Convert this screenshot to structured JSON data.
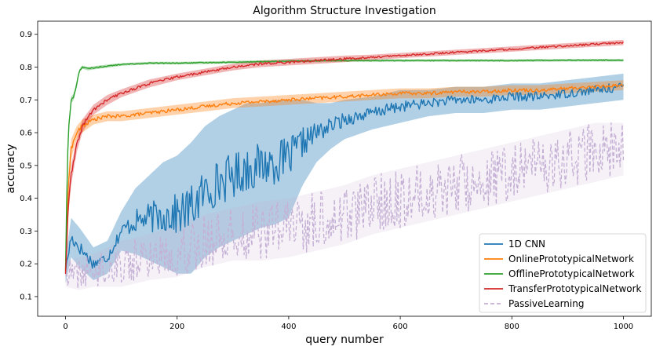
{
  "chart_data": {
    "type": "line",
    "title": "Algorithm Structure Investigation",
    "xlabel": "query number",
    "ylabel": "accuracy",
    "xlim": [
      -50,
      1050
    ],
    "ylim": [
      0.04,
      0.94
    ],
    "xticks": [
      0,
      200,
      400,
      600,
      800,
      1000
    ],
    "yticks": [
      0.1,
      0.2,
      0.3,
      0.4,
      0.5,
      0.6,
      0.7,
      0.8,
      0.9
    ],
    "grid": false,
    "legend_position": "bottom-right",
    "series": [
      {
        "name": "1D CNN",
        "color": "#1f77b4",
        "style": "solid",
        "x": [
          0,
          10,
          25,
          50,
          75,
          100,
          125,
          150,
          175,
          200,
          225,
          250,
          275,
          300,
          325,
          350,
          375,
          400,
          425,
          450,
          475,
          500,
          550,
          600,
          650,
          700,
          750,
          800,
          850,
          900,
          950,
          1000
        ],
        "y": [
          0.18,
          0.28,
          0.25,
          0.2,
          0.22,
          0.3,
          0.33,
          0.34,
          0.35,
          0.35,
          0.37,
          0.42,
          0.45,
          0.47,
          0.49,
          0.5,
          0.51,
          0.52,
          0.57,
          0.6,
          0.62,
          0.64,
          0.66,
          0.68,
          0.69,
          0.7,
          0.7,
          0.71,
          0.71,
          0.72,
          0.73,
          0.74
        ],
        "band": [
          0.04,
          0.06,
          0.06,
          0.05,
          0.05,
          0.06,
          0.1,
          0.13,
          0.16,
          0.18,
          0.2,
          0.2,
          0.2,
          0.2,
          0.2,
          0.19,
          0.19,
          0.18,
          0.13,
          0.09,
          0.07,
          0.06,
          0.05,
          0.05,
          0.04,
          0.04,
          0.04,
          0.04,
          0.04,
          0.04,
          0.04,
          0.04
        ]
      },
      {
        "name": "OnlinePrototypicalNetwork",
        "color": "#ff7f0e",
        "style": "solid",
        "x": [
          0,
          5,
          10,
          20,
          30,
          50,
          75,
          100,
          150,
          200,
          250,
          300,
          350,
          400,
          450,
          500,
          550,
          600,
          650,
          700,
          750,
          800,
          850,
          900,
          950,
          1000
        ],
        "y": [
          0.18,
          0.45,
          0.55,
          0.6,
          0.62,
          0.64,
          0.65,
          0.65,
          0.66,
          0.67,
          0.68,
          0.69,
          0.695,
          0.7,
          0.705,
          0.71,
          0.715,
          0.72,
          0.72,
          0.725,
          0.725,
          0.73,
          0.73,
          0.735,
          0.74,
          0.745
        ],
        "band": [
          0.01,
          0.03,
          0.03,
          0.02,
          0.02,
          0.015,
          0.015,
          0.015,
          0.015,
          0.015,
          0.015,
          0.015,
          0.015,
          0.015,
          0.015,
          0.015,
          0.015,
          0.015,
          0.015,
          0.015,
          0.015,
          0.015,
          0.015,
          0.015,
          0.015,
          0.015
        ]
      },
      {
        "name": "OfflinePrototypicalNetwork",
        "color": "#2ca02c",
        "style": "solid",
        "x": [
          0,
          3,
          6,
          10,
          15,
          20,
          25,
          30,
          40,
          60,
          100,
          150,
          200,
          300,
          400,
          500,
          600,
          700,
          800,
          900,
          1000
        ],
        "y": [
          0.18,
          0.5,
          0.62,
          0.7,
          0.71,
          0.75,
          0.79,
          0.8,
          0.795,
          0.8,
          0.808,
          0.812,
          0.812,
          0.815,
          0.818,
          0.82,
          0.82,
          0.82,
          0.82,
          0.821,
          0.821
        ],
        "band": [
          0.01,
          0.02,
          0.02,
          0.01,
          0.01,
          0.01,
          0.005,
          0.005,
          0.005,
          0.005,
          0.004,
          0.004,
          0.004,
          0.004,
          0.004,
          0.004,
          0.004,
          0.004,
          0.004,
          0.004,
          0.004
        ]
      },
      {
        "name": "TransferPrototypicalNetwork",
        "color": "#d62728",
        "style": "solid",
        "x": [
          0,
          5,
          10,
          20,
          30,
          50,
          75,
          100,
          150,
          200,
          250,
          300,
          350,
          400,
          450,
          500,
          550,
          600,
          650,
          700,
          750,
          800,
          850,
          900,
          950,
          1000
        ],
        "y": [
          0.17,
          0.38,
          0.47,
          0.56,
          0.62,
          0.67,
          0.7,
          0.72,
          0.75,
          0.77,
          0.785,
          0.8,
          0.81,
          0.815,
          0.82,
          0.825,
          0.83,
          0.835,
          0.84,
          0.845,
          0.85,
          0.855,
          0.86,
          0.865,
          0.87,
          0.875
        ],
        "band": [
          0.01,
          0.03,
          0.03,
          0.02,
          0.02,
          0.015,
          0.015,
          0.012,
          0.012,
          0.01,
          0.01,
          0.01,
          0.01,
          0.01,
          0.01,
          0.01,
          0.008,
          0.008,
          0.008,
          0.008,
          0.008,
          0.008,
          0.008,
          0.008,
          0.008,
          0.008
        ]
      },
      {
        "name": "PassiveLearning",
        "color": "#c5b0d5",
        "style": "dashed",
        "x": [
          0,
          25,
          50,
          75,
          100,
          150,
          200,
          250,
          300,
          350,
          400,
          450,
          500,
          550,
          600,
          650,
          700,
          750,
          800,
          850,
          900,
          950,
          1000
        ],
        "y": [
          0.17,
          0.17,
          0.18,
          0.19,
          0.2,
          0.22,
          0.24,
          0.27,
          0.29,
          0.3,
          0.31,
          0.33,
          0.35,
          0.38,
          0.4,
          0.42,
          0.44,
          0.46,
          0.48,
          0.5,
          0.52,
          0.54,
          0.55
        ],
        "band": [
          0.04,
          0.05,
          0.05,
          0.06,
          0.07,
          0.07,
          0.08,
          0.08,
          0.08,
          0.09,
          0.09,
          0.09,
          0.09,
          0.09,
          0.09,
          0.09,
          0.09,
          0.09,
          0.09,
          0.09,
          0.09,
          0.09,
          0.08
        ]
      }
    ]
  }
}
